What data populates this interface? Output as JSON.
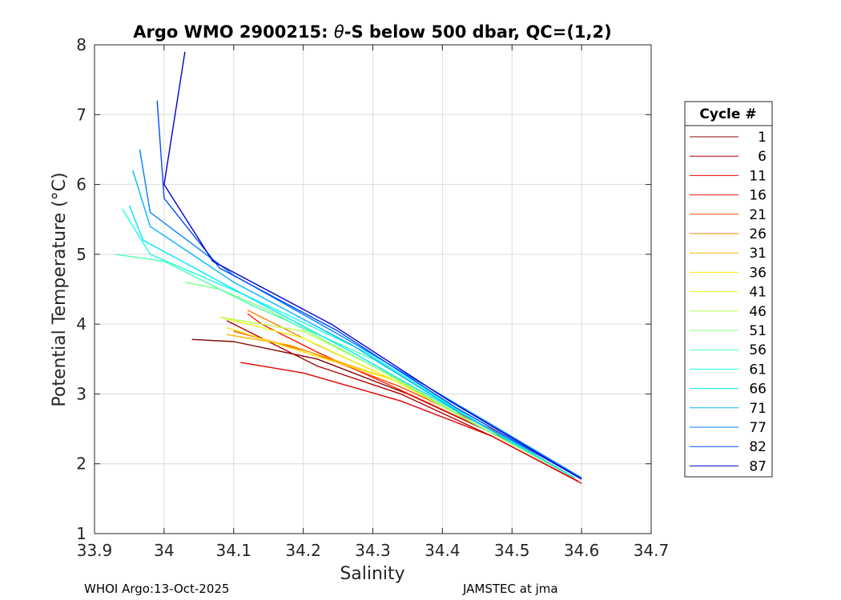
{
  "chart_data": {
    "type": "line",
    "title_prefix": "Argo WMO 2900215: ",
    "title_theta": "θ",
    "title_suffix": "-S below 500 dbar,  QC=(1,2)",
    "xlabel": "Salinity",
    "ylabel": "Potential Temperature (°C)",
    "xlim": [
      33.9,
      34.7
    ],
    "ylim": [
      1,
      8
    ],
    "xticks": [
      "33.9",
      "34",
      "34.1",
      "34.2",
      "34.3",
      "34.4",
      "34.5",
      "34.6",
      "34.7"
    ],
    "yticks": [
      "1",
      "2",
      "3",
      "4",
      "5",
      "6",
      "7",
      "8"
    ],
    "grid": true,
    "legend": {
      "title": "Cycle #",
      "position": "right",
      "entries": [
        "1",
        "6",
        "11",
        "16",
        "21",
        "26",
        "31",
        "36",
        "41",
        "46",
        "51",
        "56",
        "61",
        "66",
        "71",
        "77",
        "82",
        "87"
      ],
      "colors": [
        "#800000",
        "#B30000",
        "#E60000",
        "#FF1A00",
        "#FF4D00",
        "#FF8000",
        "#FFB300",
        "#FFE600",
        "#E6FF1A",
        "#B3FF4D",
        "#80FF80",
        "#4DFFB3",
        "#1AFFE6",
        "#00E6FF",
        "#00B3FF",
        "#0080FF",
        "#004DFF",
        "#0000CC"
      ]
    },
    "series": [
      {
        "name": "1",
        "color": "#800000",
        "theta": [
          1.8,
          2.4,
          3.0,
          3.5,
          3.75,
          3.78
        ],
        "salinity": [
          34.59,
          34.48,
          34.35,
          34.22,
          34.1,
          34.04
        ]
      },
      {
        "name": "6",
        "color": "#B30000",
        "theta": [
          1.75,
          2.4,
          3.0,
          3.4,
          3.9,
          4.05
        ],
        "salinity": [
          34.595,
          34.47,
          34.34,
          34.22,
          34.12,
          34.09
        ]
      },
      {
        "name": "11",
        "color": "#E60000",
        "theta": [
          1.72,
          2.4,
          2.9,
          3.3,
          3.45
        ],
        "salinity": [
          34.6,
          34.47,
          34.34,
          34.2,
          34.11
        ]
      },
      {
        "name": "16",
        "color": "#FF1A00",
        "theta": [
          1.8,
          2.5,
          3.1,
          3.6,
          4.0,
          4.15
        ],
        "salinity": [
          34.59,
          34.46,
          34.33,
          34.22,
          34.14,
          34.12
        ]
      },
      {
        "name": "21",
        "color": "#FF4D00",
        "theta": [
          1.8,
          2.5,
          3.1,
          3.6,
          3.9
        ],
        "salinity": [
          34.59,
          34.47,
          34.34,
          34.21,
          34.1
        ]
      },
      {
        "name": "26",
        "color": "#FF8000",
        "theta": [
          1.8,
          2.5,
          3.2,
          3.7,
          4.2
        ],
        "salinity": [
          34.59,
          34.46,
          34.33,
          34.22,
          34.12
        ]
      },
      {
        "name": "31",
        "color": "#FFB300",
        "theta": [
          1.8,
          2.5,
          3.2,
          3.7,
          3.85
        ],
        "salinity": [
          34.59,
          34.46,
          34.33,
          34.18,
          34.09
        ]
      },
      {
        "name": "36",
        "color": "#FFE600",
        "theta": [
          1.8,
          2.5,
          3.2,
          3.6,
          3.95
        ],
        "salinity": [
          34.59,
          34.46,
          34.33,
          34.2,
          34.09
        ]
      },
      {
        "name": "41",
        "color": "#E6FF1A",
        "theta": [
          1.8,
          2.5,
          3.2,
          3.8,
          4.1
        ],
        "salinity": [
          34.59,
          34.46,
          34.33,
          34.2,
          34.08
        ]
      },
      {
        "name": "46",
        "color": "#B3FF4D",
        "theta": [
          1.8,
          2.5,
          3.3,
          3.9,
          4.1
        ],
        "salinity": [
          34.59,
          34.46,
          34.32,
          34.2,
          34.08
        ]
      },
      {
        "name": "51",
        "color": "#80FF80",
        "theta": [
          1.8,
          2.6,
          3.4,
          4.2,
          4.5,
          4.6
        ],
        "salinity": [
          34.59,
          34.44,
          34.3,
          34.15,
          34.08,
          34.03
        ]
      },
      {
        "name": "56",
        "color": "#4DFFB3",
        "theta": [
          1.8,
          2.6,
          3.5,
          4.3,
          4.9,
          5.0
        ],
        "salinity": [
          34.59,
          34.45,
          34.3,
          34.12,
          34.0,
          33.93
        ]
      },
      {
        "name": "61",
        "color": "#1AFFE6",
        "theta": [
          1.8,
          2.6,
          3.6,
          4.4,
          5.0,
          5.65
        ],
        "salinity": [
          34.59,
          34.45,
          34.29,
          34.12,
          33.98,
          33.94
        ]
      },
      {
        "name": "66",
        "color": "#00E6FF",
        "theta": [
          1.8,
          2.7,
          3.6,
          4.5,
          5.2,
          5.7
        ],
        "salinity": [
          34.59,
          34.43,
          34.27,
          34.1,
          33.97,
          33.95
        ]
      },
      {
        "name": "71",
        "color": "#00B3FF",
        "theta": [
          1.8,
          2.7,
          3.7,
          4.6,
          5.4,
          6.2
        ],
        "salinity": [
          34.6,
          34.43,
          34.27,
          34.1,
          33.98,
          33.955
        ]
      },
      {
        "name": "77",
        "color": "#0080FF",
        "theta": [
          1.8,
          2.8,
          3.8,
          4.7,
          5.6,
          6.5
        ],
        "salinity": [
          34.6,
          34.43,
          34.26,
          34.1,
          33.98,
          33.965
        ]
      },
      {
        "name": "82",
        "color": "#004DFF",
        "theta": [
          1.78,
          2.8,
          3.9,
          4.8,
          5.8,
          7.2
        ],
        "salinity": [
          34.6,
          34.42,
          34.25,
          34.08,
          34.0,
          33.99
        ]
      },
      {
        "name": "87",
        "color": "#0000CC",
        "theta": [
          1.78,
          2.9,
          4.0,
          4.9,
          6.0,
          7.9
        ],
        "salinity": [
          34.6,
          34.41,
          34.24,
          34.07,
          34.0,
          34.03
        ]
      }
    ]
  },
  "footer": {
    "left": "WHOI Argo:13-Oct-2025",
    "right": "JAMSTEC at jma"
  }
}
